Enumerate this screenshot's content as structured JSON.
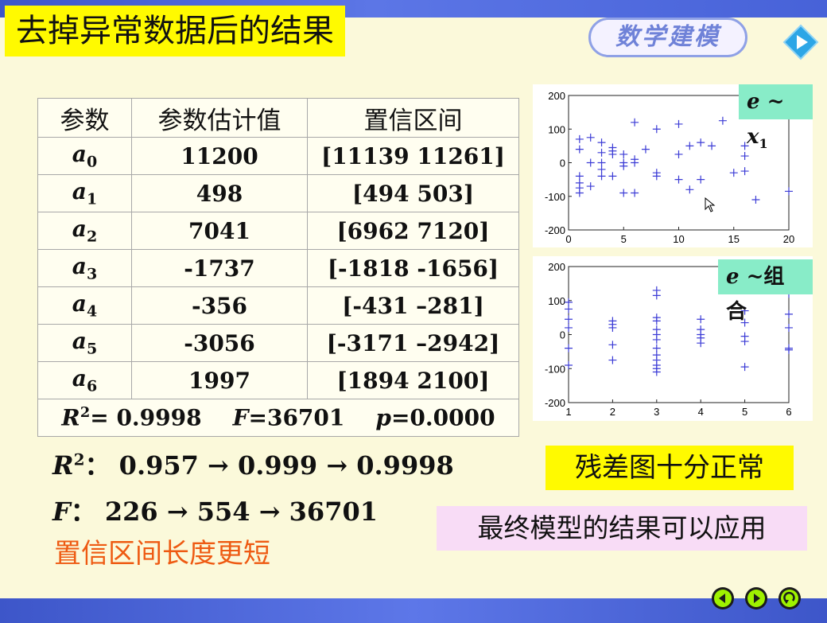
{
  "title": "去掉异常数据后的结果",
  "badge": "数学建模",
  "table": {
    "headers": [
      "参数",
      "参数估计值",
      "置信区间"
    ],
    "rows": [
      {
        "sym": "a",
        "sub": "0",
        "est": "11200",
        "ci": "[11139  11261]"
      },
      {
        "sym": "a",
        "sub": "1",
        "est": "498",
        "ci": "[494  503]"
      },
      {
        "sym": "a",
        "sub": "2",
        "est": "7041",
        "ci": "[6962  7120]"
      },
      {
        "sym": "a",
        "sub": "3",
        "est": "-1737",
        "ci": "[-1818  -1656]"
      },
      {
        "sym": "a",
        "sub": "4",
        "est": "-356",
        "ci": "[-431  –281]"
      },
      {
        "sym": "a",
        "sub": "5",
        "est": "-3056",
        "ci": "[-3171 –2942]"
      },
      {
        "sym": "a",
        "sub": "6",
        "est": "1997",
        "ci": "[1894  2100]"
      }
    ],
    "stats": {
      "r_label": "R",
      "r_sup": "2",
      "r_val": "= 0.9998",
      "f_label": "F",
      "f_val": "=36701",
      "p_label": "p",
      "p_val": "=0.0000"
    }
  },
  "summary": {
    "r2_label": "R",
    "r2_sup": "2",
    "r2_colon": "：",
    "r2_text": "0.957 → 0.999 → 0.9998",
    "f_label": "F",
    "f_colon": "：",
    "f_text": "226 → 554 → 36701",
    "ci_note": "置信区间长度更短"
  },
  "notes": {
    "residual": "残差图十分正常",
    "final": "最终模型的结果可以应用"
  },
  "plot1": {
    "label_e": "e",
    "label_tilde": " ~ ",
    "label_x": "x",
    "label_sub": "1",
    "xticks": [
      "0",
      "5",
      "10",
      "15",
      "20"
    ],
    "yticks": [
      "200",
      "100",
      "0",
      "-100",
      "-200"
    ]
  },
  "plot2": {
    "label_e": "e",
    "label_rest": " ~组合",
    "xticks": [
      "1",
      "2",
      "3",
      "4",
      "5",
      "6"
    ],
    "yticks": [
      "200",
      "100",
      "0",
      "-100",
      "-200"
    ]
  },
  "chart_data": [
    {
      "type": "scatter",
      "xlim": [
        0,
        20
      ],
      "ylim": [
        -200,
        200
      ],
      "x": [
        1,
        1,
        1,
        1,
        1,
        1,
        2,
        2,
        2,
        3,
        3,
        3,
        3,
        3,
        4,
        4,
        4,
        4,
        5,
        5,
        5,
        5,
        6,
        6,
        6,
        6,
        7,
        8,
        8,
        8,
        10,
        10,
        10,
        11,
        11,
        12,
        12,
        13,
        14,
        15,
        16,
        16,
        16,
        17,
        20
      ],
      "y": [
        70,
        -40,
        -60,
        -75,
        -90,
        40,
        75,
        0,
        -70,
        60,
        30,
        0,
        -20,
        -40,
        45,
        35,
        25,
        -40,
        25,
        -10,
        -90,
        0,
        120,
        10,
        0,
        -90,
        40,
        100,
        -30,
        -40,
        115,
        25,
        -50,
        50,
        -80,
        60,
        -50,
        50,
        125,
        -30,
        50,
        20,
        -25,
        -110,
        -85
      ],
      "color": "#3c3cd6"
    },
    {
      "type": "scatter",
      "xlim": [
        1,
        6
      ],
      "ylim": [
        -200,
        200
      ],
      "x": [
        1,
        1,
        1,
        1,
        1,
        1,
        2,
        2,
        2,
        2,
        2,
        3,
        3,
        3,
        3,
        3,
        3,
        3,
        3,
        3,
        3,
        3,
        3,
        3,
        4,
        4,
        4,
        4,
        4,
        5,
        5,
        5,
        5,
        5,
        6,
        6,
        6,
        6,
        6
      ],
      "y": [
        95,
        75,
        45,
        20,
        -40,
        -90,
        40,
        30,
        20,
        -30,
        -75,
        130,
        115,
        50,
        40,
        15,
        -15,
        -40,
        -60,
        -75,
        -90,
        -100,
        -110,
        0,
        45,
        15,
        0,
        -10,
        -25,
        70,
        35,
        -5,
        -20,
        -95,
        120,
        60,
        20,
        -40,
        -45
      ],
      "color": "#3c3cd6"
    }
  ]
}
